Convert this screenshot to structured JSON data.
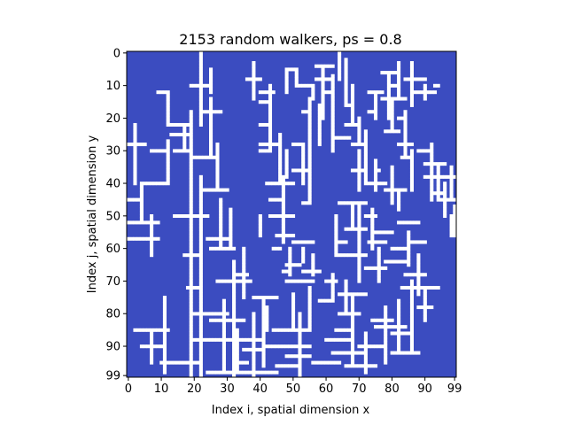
{
  "chart_data": {
    "type": "heatmap",
    "title": "2153 random walkers, ps = 0.8",
    "xlabel": "Index i, spatial dimension x",
    "ylabel": "Index j, spatial dimension y",
    "xlim": [
      0,
      99
    ],
    "ylim": [
      99,
      0
    ],
    "xticks": [
      0,
      10,
      20,
      30,
      40,
      50,
      60,
      70,
      80,
      90,
      99
    ],
    "yticks": [
      0,
      10,
      20,
      30,
      40,
      50,
      60,
      70,
      80,
      90,
      99
    ],
    "grid_size": [
      100,
      100
    ],
    "colors": {
      "background": "#3b4cc0",
      "occupied": "#ffffff"
    },
    "grid": false,
    "legend": "none",
    "segments": [
      [
        19,
        18,
        19,
        99
      ],
      [
        12,
        22,
        19,
        22
      ],
      [
        12,
        12,
        12,
        22
      ],
      [
        9,
        12,
        12,
        12
      ],
      [
        13,
        25,
        19,
        25
      ],
      [
        17,
        22,
        17,
        30
      ],
      [
        14,
        30,
        19,
        30
      ],
      [
        7,
        30,
        12,
        30
      ],
      [
        12,
        27,
        12,
        40
      ],
      [
        4,
        40,
        12,
        40
      ],
      [
        4,
        40,
        4,
        52
      ],
      [
        0,
        45,
        4,
        45
      ],
      [
        0,
        52,
        9,
        52
      ],
      [
        0,
        57,
        9,
        57
      ],
      [
        7,
        50,
        7,
        62
      ],
      [
        2,
        22,
        2,
        40
      ],
      [
        0,
        28,
        5,
        28
      ],
      [
        22,
        0,
        22,
        22
      ],
      [
        19,
        10,
        25,
        10
      ],
      [
        22,
        18,
        28,
        18
      ],
      [
        25,
        5,
        25,
        12
      ],
      [
        25,
        14,
        25,
        32
      ],
      [
        20,
        32,
        27,
        32
      ],
      [
        27,
        28,
        27,
        42
      ],
      [
        22,
        42,
        30,
        42
      ],
      [
        22,
        38,
        22,
        50
      ],
      [
        14,
        50,
        24,
        50
      ],
      [
        22,
        50,
        22,
        99
      ],
      [
        17,
        62,
        22,
        62
      ],
      [
        18,
        72,
        22,
        72
      ],
      [
        20,
        80,
        30,
        80
      ],
      [
        20,
        88,
        30,
        88
      ],
      [
        10,
        95,
        22,
        95
      ],
      [
        4,
        90,
        10,
        90
      ],
      [
        7,
        86,
        7,
        95
      ],
      [
        2,
        85,
        12,
        85
      ],
      [
        11,
        75,
        11,
        98
      ],
      [
        24,
        57,
        30,
        57
      ],
      [
        25,
        60,
        32,
        60
      ],
      [
        28,
        45,
        28,
        60
      ],
      [
        31,
        48,
        31,
        60
      ],
      [
        32,
        64,
        32,
        99
      ],
      [
        27,
        70,
        37,
        70
      ],
      [
        25,
        82,
        35,
        82
      ],
      [
        29,
        76,
        29,
        98
      ],
      [
        35,
        60,
        35,
        75
      ],
      [
        33,
        68,
        36,
        68
      ],
      [
        26,
        88,
        40,
        88
      ],
      [
        24,
        98,
        45,
        98
      ],
      [
        33,
        85,
        33,
        98
      ],
      [
        35,
        91,
        40,
        91
      ],
      [
        33,
        95,
        36,
        95
      ],
      [
        38,
        80,
        38,
        99
      ],
      [
        41,
        75,
        41,
        96
      ],
      [
        38,
        75,
        45,
        75
      ],
      [
        42,
        78,
        42,
        85
      ],
      [
        44,
        85,
        55,
        85
      ],
      [
        42,
        90,
        55,
        90
      ],
      [
        48,
        93,
        55,
        93
      ],
      [
        45,
        96,
        52,
        96
      ],
      [
        52,
        80,
        52,
        99
      ],
      [
        48,
        70,
        56,
        70
      ],
      [
        50,
        74,
        50,
        85
      ],
      [
        55,
        72,
        55,
        85
      ],
      [
        53,
        67,
        58,
        67
      ],
      [
        47,
        67,
        49,
        67
      ],
      [
        50,
        58,
        56,
        58
      ],
      [
        53,
        60,
        53,
        64
      ],
      [
        56,
        62,
        56,
        68
      ],
      [
        36,
        8,
        40,
        8
      ],
      [
        38,
        3,
        38,
        14
      ],
      [
        40,
        12,
        44,
        12
      ],
      [
        40,
        15,
        43,
        15
      ],
      [
        43,
        10,
        43,
        30
      ],
      [
        40,
        22,
        43,
        22
      ],
      [
        40,
        28,
        46,
        28
      ],
      [
        46,
        25,
        46,
        40
      ],
      [
        42,
        40,
        50,
        40
      ],
      [
        47,
        38,
        47,
        58
      ],
      [
        43,
        45,
        47,
        45
      ],
      [
        43,
        50,
        50,
        50
      ],
      [
        40,
        50,
        40,
        56
      ],
      [
        45,
        56,
        50,
        56
      ],
      [
        44,
        60,
        46,
        60
      ],
      [
        49,
        60,
        49,
        68
      ],
      [
        48,
        65,
        52,
        65
      ],
      [
        48,
        30,
        48,
        38
      ],
      [
        50,
        28,
        53,
        28
      ],
      [
        53,
        28,
        53,
        40
      ],
      [
        50,
        36,
        55,
        36
      ],
      [
        55,
        33,
        55,
        46
      ],
      [
        53,
        46,
        55,
        46
      ],
      [
        53,
        18,
        55,
        18
      ],
      [
        55,
        14,
        55,
        33
      ],
      [
        58,
        16,
        58,
        28
      ],
      [
        52,
        10,
        56,
        10
      ],
      [
        56,
        10,
        56,
        14
      ],
      [
        48,
        5,
        48,
        12
      ],
      [
        48,
        5,
        51,
        5
      ],
      [
        51,
        5,
        51,
        10
      ],
      [
        40,
        30,
        42,
        30
      ],
      [
        57,
        4,
        62,
        4
      ],
      [
        59,
        4,
        59,
        20
      ],
      [
        57,
        8,
        61,
        8
      ],
      [
        60,
        12,
        62,
        12
      ],
      [
        62,
        7,
        62,
        30
      ],
      [
        62,
        26,
        67,
        26
      ],
      [
        64,
        0,
        64,
        8
      ],
      [
        66,
        2,
        66,
        16
      ],
      [
        66,
        16,
        68,
        16
      ],
      [
        68,
        10,
        68,
        22
      ],
      [
        66,
        22,
        70,
        22
      ],
      [
        70,
        20,
        70,
        28
      ],
      [
        68,
        28,
        72,
        28
      ],
      [
        72,
        24,
        72,
        40
      ],
      [
        70,
        30,
        70,
        42
      ],
      [
        68,
        36,
        72,
        36
      ],
      [
        72,
        40,
        78,
        40
      ],
      [
        75,
        33,
        75,
        42
      ],
      [
        73,
        18,
        75,
        18
      ],
      [
        75,
        12,
        75,
        20
      ],
      [
        73,
        12,
        77,
        12
      ],
      [
        79,
        6,
        79,
        20
      ],
      [
        77,
        6,
        82,
        6
      ],
      [
        80,
        10,
        82,
        10
      ],
      [
        82,
        3,
        82,
        14
      ],
      [
        77,
        14,
        84,
        14
      ],
      [
        80,
        14,
        80,
        24
      ],
      [
        78,
        24,
        82,
        24
      ],
      [
        86,
        3,
        86,
        16
      ],
      [
        84,
        8,
        90,
        8
      ],
      [
        87,
        12,
        93,
        12
      ],
      [
        90,
        10,
        90,
        14
      ],
      [
        93,
        10,
        94,
        10
      ],
      [
        82,
        20,
        84,
        20
      ],
      [
        84,
        18,
        84,
        32
      ],
      [
        82,
        28,
        86,
        28
      ],
      [
        83,
        32,
        86,
        32
      ],
      [
        86,
        30,
        86,
        42
      ],
      [
        80,
        35,
        80,
        46
      ],
      [
        78,
        42,
        84,
        42
      ],
      [
        82,
        42,
        82,
        48
      ],
      [
        92,
        28,
        92,
        45
      ],
      [
        88,
        30,
        92,
        30
      ],
      [
        90,
        34,
        96,
        34
      ],
      [
        94,
        34,
        94,
        45
      ],
      [
        90,
        38,
        99,
        38
      ],
      [
        96,
        40,
        96,
        50
      ],
      [
        92,
        43,
        96,
        43
      ],
      [
        98,
        35,
        98,
        45
      ],
      [
        99,
        47,
        99,
        56
      ],
      [
        95,
        45,
        99,
        45
      ],
      [
        98,
        50,
        98,
        56
      ],
      [
        63,
        50,
        63,
        62
      ],
      [
        63,
        62,
        72,
        62
      ],
      [
        63,
        58,
        66,
        58
      ],
      [
        64,
        46,
        72,
        46
      ],
      [
        68,
        46,
        68,
        54
      ],
      [
        66,
        54,
        72,
        54
      ],
      [
        70,
        46,
        70,
        70
      ],
      [
        72,
        50,
        75,
        50
      ],
      [
        74,
        48,
        74,
        60
      ],
      [
        73,
        58,
        78,
        58
      ],
      [
        75,
        55,
        80,
        55
      ],
      [
        76,
        60,
        76,
        70
      ],
      [
        72,
        66,
        78,
        66
      ],
      [
        66,
        70,
        66,
        80
      ],
      [
        64,
        74,
        72,
        74
      ],
      [
        68,
        74,
        68,
        96
      ],
      [
        64,
        80,
        70,
        80
      ],
      [
        63,
        85,
        68,
        85
      ],
      [
        60,
        88,
        68,
        88
      ],
      [
        62,
        92,
        72,
        92
      ],
      [
        56,
        95,
        64,
        95
      ],
      [
        66,
        96,
        75,
        96
      ],
      [
        72,
        86,
        72,
        98
      ],
      [
        70,
        90,
        78,
        90
      ],
      [
        74,
        82,
        80,
        82
      ],
      [
        78,
        78,
        78,
        95
      ],
      [
        75,
        84,
        84,
        84
      ],
      [
        80,
        86,
        86,
        86
      ],
      [
        82,
        76,
        82,
        92
      ],
      [
        80,
        92,
        88,
        92
      ],
      [
        86,
        70,
        86,
        92
      ],
      [
        83,
        72,
        94,
        72
      ],
      [
        88,
        62,
        88,
        74
      ],
      [
        86,
        58,
        90,
        58
      ],
      [
        85,
        55,
        85,
        65
      ],
      [
        82,
        52,
        88,
        52
      ],
      [
        80,
        60,
        84,
        60
      ],
      [
        78,
        64,
        84,
        64
      ],
      [
        84,
        68,
        90,
        68
      ],
      [
        90,
        72,
        90,
        82
      ],
      [
        88,
        78,
        92,
        78
      ],
      [
        60,
        70,
        63,
        70
      ],
      [
        62,
        68,
        62,
        76
      ],
      [
        58,
        76,
        62,
        76
      ],
      [
        75,
        36,
        76,
        36
      ]
    ]
  }
}
